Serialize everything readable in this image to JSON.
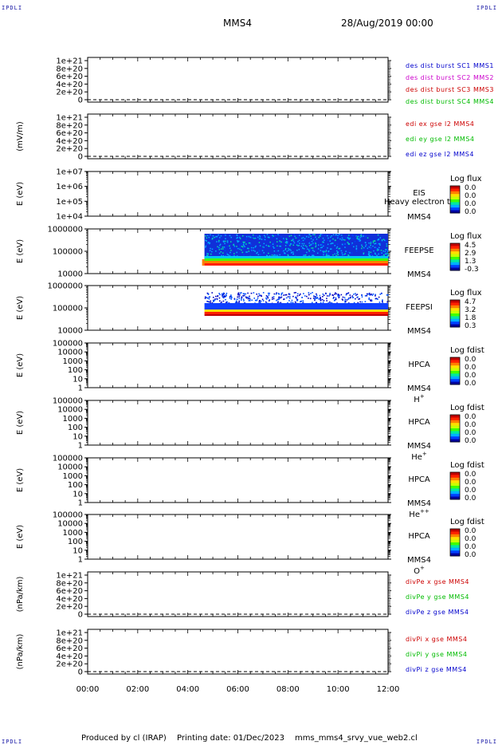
{
  "corners": {
    "label": "IPDLI"
  },
  "header": {
    "spacecraft": "MMS4",
    "datetime": "28/Aug/2019 00:00"
  },
  "footer": {
    "producer": "Produced by cl (IRAP)",
    "printing": "Printing date: 01/Dec/2023",
    "script": "mms_mms4_srvy_vue_web2.cl"
  },
  "colors": {
    "mms1": "#0000cc",
    "mms2": "#cc00cc",
    "mms3": "#cc0000",
    "mms4": "#00bb00",
    "x": "#cc0000",
    "y": "#00bb00",
    "z": "#0000cc"
  },
  "chart_data": {
    "type": "stacked-timeseries",
    "x_axis": {
      "ticks": [
        "00:00",
        "02:00",
        "04:00",
        "06:00",
        "08:00",
        "10:00",
        "12:00"
      ]
    },
    "panels": [
      {
        "id": "p1",
        "type": "line",
        "ylabel": "",
        "yticks": [
          "1e+21",
          "8e+20",
          "6e+20",
          "4e+20",
          "2e+20",
          "0"
        ],
        "dashed_zero": true,
        "legend": [
          {
            "text": "des dist burst SC1 MMS1",
            "color": "mms1"
          },
          {
            "text": "des dist burst SC2 MMS2",
            "color": "mms2"
          },
          {
            "text": "des dist burst SC3 MMS3",
            "color": "mms3"
          },
          {
            "text": "des dist burst SC4 MMS4",
            "color": "mms4"
          }
        ]
      },
      {
        "id": "p2",
        "type": "line",
        "ylabel": "(mV/m)",
        "yticks": [
          "1e+21",
          "8e+20",
          "6e+20",
          "4e+20",
          "2e+20",
          "0"
        ],
        "dashed_zero": true,
        "legend": [
          {
            "text": "edi ex gse l2 MMS4",
            "color": "x"
          },
          {
            "text": "edi ey gse l2 MMS4",
            "color": "y"
          },
          {
            "text": "edi ez gse l2 MMS4",
            "color": "z"
          }
        ]
      },
      {
        "id": "p3",
        "type": "spectrogram",
        "ylabel": "E (eV)",
        "yticks": [
          "1e+07",
          "1e+06",
          "1e+05",
          "1e+04"
        ],
        "labels": [
          "EIS",
          "MMS4"
        ],
        "overlay": "Heavy electron tof",
        "colorbar_title": "Log flux",
        "colorbar_ticks": [
          "0.0",
          "0.0",
          "0.0",
          "0.0"
        ]
      },
      {
        "id": "p4",
        "type": "spectrogram",
        "ylabel": "E (eV)",
        "yticks": [
          "1000000",
          "100000",
          "10000"
        ],
        "labels": [
          "FEEPSE",
          "MMS4"
        ],
        "colorbar_title": "Log flux",
        "colorbar_ticks": [
          "4.5",
          "2.9",
          "1.3",
          "-0.3"
        ],
        "data_start": "04:40"
      },
      {
        "id": "p5",
        "type": "spectrogram",
        "ylabel": "E (eV)",
        "yticks": [
          "1000000",
          "100000",
          "10000"
        ],
        "labels": [
          "FEEPSI",
          "MMS4"
        ],
        "colorbar_title": "Log flux",
        "colorbar_ticks": [
          "4.7",
          "3.2",
          "1.8",
          "0.3"
        ],
        "data_start": "04:40"
      },
      {
        "id": "p6",
        "type": "spectrogram",
        "ylabel": "E (eV)",
        "yticks": [
          "100000",
          "10000",
          "1000",
          "100",
          "10",
          "1"
        ],
        "labels": [
          "HPCA",
          "MMS4"
        ],
        "species": "H",
        "species_sup": "+",
        "colorbar_title": "Log fdist",
        "colorbar_ticks": [
          "0.0",
          "0.0",
          "0.0",
          "0.0"
        ]
      },
      {
        "id": "p7",
        "type": "spectrogram",
        "ylabel": "E (eV)",
        "yticks": [
          "100000",
          "10000",
          "1000",
          "100",
          "10",
          "1"
        ],
        "labels": [
          "HPCA",
          "MMS4"
        ],
        "species": "He",
        "species_sup": "+",
        "colorbar_title": "Log fdist",
        "colorbar_ticks": [
          "0.0",
          "0.0",
          "0.0",
          "0.0"
        ]
      },
      {
        "id": "p8",
        "type": "spectrogram",
        "ylabel": "E (eV)",
        "yticks": [
          "100000",
          "10000",
          "1000",
          "100",
          "10",
          "1"
        ],
        "labels": [
          "HPCA",
          "MMS4"
        ],
        "species": "He",
        "species_sup": "++",
        "colorbar_title": "Log fdist",
        "colorbar_ticks": [
          "0.0",
          "0.0",
          "0.0",
          "0.0"
        ]
      },
      {
        "id": "p9",
        "type": "spectrogram",
        "ylabel": "E (eV)",
        "yticks": [
          "100000",
          "10000",
          "1000",
          "100",
          "10",
          "1"
        ],
        "labels": [
          "HPCA",
          "MMS4"
        ],
        "species": "O",
        "species_sup": "+",
        "colorbar_title": "Log fdist",
        "colorbar_ticks": [
          "0.0",
          "0.0",
          "0.0",
          "0.0"
        ]
      },
      {
        "id": "p10",
        "type": "line",
        "ylabel": "(nPa/km)",
        "yticks": [
          "1e+21",
          "8e+20",
          "6e+20",
          "4e+20",
          "2e+20",
          "0"
        ],
        "dashed_zero": true,
        "legend": [
          {
            "text": "divPe x gse MMS4",
            "color": "x"
          },
          {
            "text": "divPe y gse MMS4",
            "color": "y"
          },
          {
            "text": "divPe z gse MMS4",
            "color": "z"
          }
        ]
      },
      {
        "id": "p11",
        "type": "line",
        "ylabel": "(nPa/km)",
        "yticks": [
          "1e+21",
          "8e+20",
          "6e+20",
          "4e+20",
          "2e+20",
          "0"
        ],
        "dashed_zero": true,
        "legend": [
          {
            "text": "divPi x gse MMS4",
            "color": "x"
          },
          {
            "text": "divPi y gse MMS4",
            "color": "y"
          },
          {
            "text": "divPi z gse MMS4",
            "color": "z"
          }
        ]
      }
    ]
  }
}
